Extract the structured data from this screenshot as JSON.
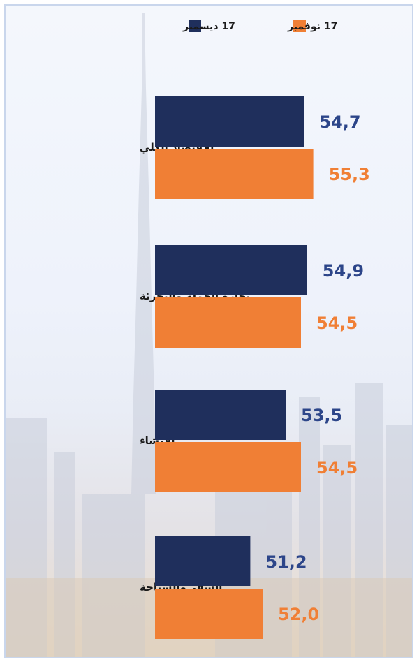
{
  "colors": {
    "series_1": "#1f2f5c",
    "series_2": "#f07f35",
    "series_1_label": "#2c4589",
    "series_2_label": "#f07f35"
  },
  "chart_data": {
    "type": "bar",
    "orientation": "horizontal",
    "title": "",
    "xlabel": "",
    "ylabel": "",
    "xlim": [
      45,
      57
    ],
    "grid": false,
    "legend_position": "top",
    "categories": [
      "الاقتصاد الكلي",
      "تجارة الجملة والتجزئة",
      "الإنشاء",
      "السفر والسياحة"
    ],
    "series": [
      {
        "name": "17 ديسمبر",
        "values": [
          54.7,
          54.9,
          53.5,
          51.2
        ],
        "labels": [
          "54,7",
          "54,9",
          "53,5",
          "51,2"
        ]
      },
      {
        "name": "17 نوفمبر",
        "values": [
          55.3,
          54.5,
          54.5,
          52.0
        ],
        "labels": [
          "55,3",
          "54,5",
          "54,5",
          "52,0"
        ]
      }
    ]
  }
}
